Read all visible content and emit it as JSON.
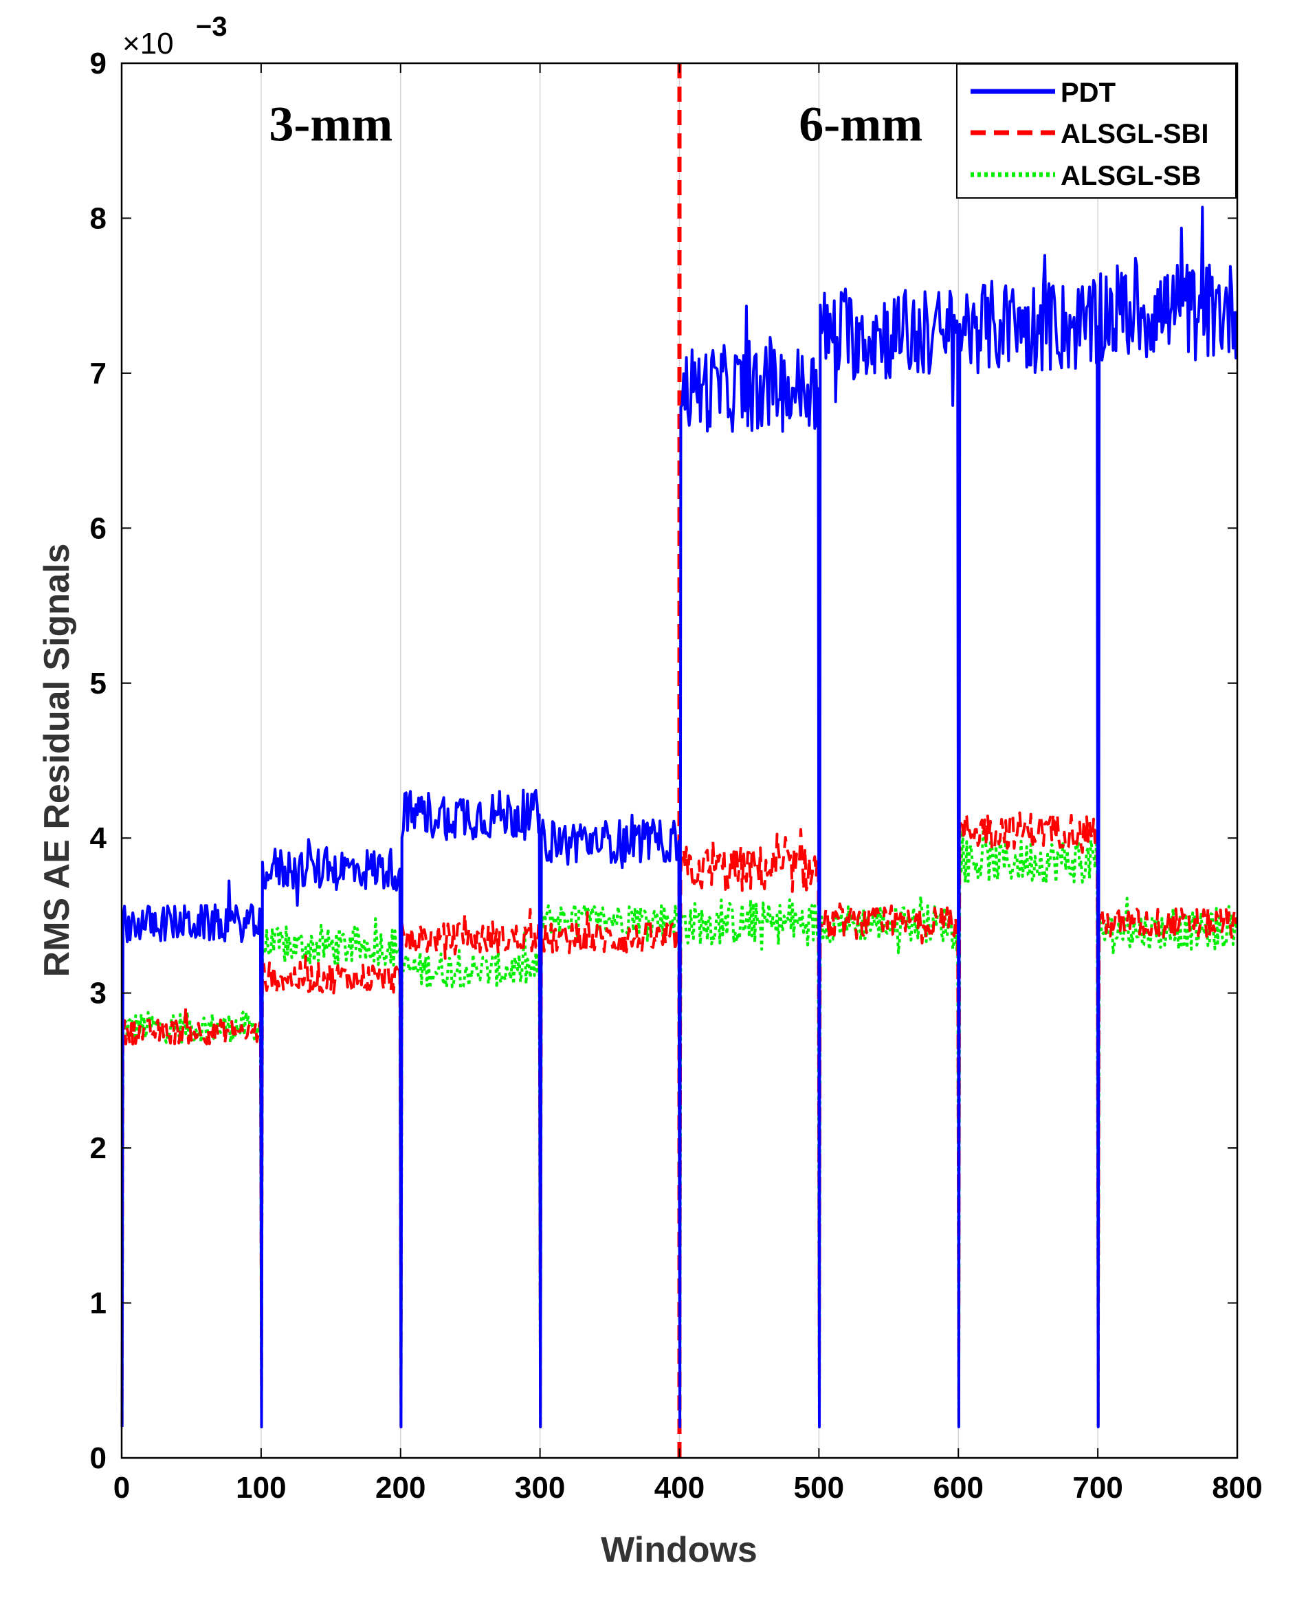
{
  "chart_data": {
    "type": "line",
    "title": "",
    "xlabel": "Windows",
    "ylabel": "RMS AE Residual Signals",
    "xlim": [
      0,
      800
    ],
    "ylim": [
      0,
      9
    ],
    "x_ticks": [
      0,
      100,
      200,
      300,
      400,
      500,
      600,
      700,
      800
    ],
    "y_ticks": [
      0,
      1,
      2,
      3,
      4,
      5,
      6,
      7,
      8,
      9
    ],
    "y_exponent_label": "×10",
    "y_exponent": "−3",
    "grid": "vertical lines at 100-window intervals",
    "legend_position": "top-right",
    "annotations": [
      {
        "text": "3-mm",
        "x": 150,
        "y": 8.5
      },
      {
        "text": "6-mm",
        "x": 530,
        "y": 8.5
      }
    ],
    "divider": {
      "x": 400,
      "label": "transition between 3-mm and 6-mm"
    },
    "segment_starts": [
      0,
      100,
      200,
      300,
      400,
      500,
      600,
      700
    ],
    "segment_length": 100,
    "drop_to_value": 0.2,
    "series": [
      {
        "name": "PDT",
        "color": "#0000ff",
        "style": "solid",
        "segment_means": [
          3.45,
          3.8,
          4.15,
          3.98,
          6.9,
          7.25,
          7.3,
          7.4
        ],
        "segment_noise": [
          0.12,
          0.14,
          0.16,
          0.14,
          0.28,
          0.3,
          0.3,
          0.32
        ]
      },
      {
        "name": "ALSGL-SBI",
        "color": "#ff0000",
        "style": "dashed",
        "segment_means": [
          2.75,
          3.1,
          3.35,
          3.35,
          3.8,
          3.45,
          4.05,
          3.45
        ],
        "segment_noise": [
          0.08,
          0.1,
          0.1,
          0.1,
          0.15,
          0.1,
          0.12,
          0.1
        ]
      },
      {
        "name": "ALSGL-SB",
        "color": "#00ee00",
        "style": "dotted",
        "segment_means": [
          2.78,
          3.3,
          3.15,
          3.48,
          3.45,
          3.45,
          3.85,
          3.4
        ],
        "segment_noise": [
          0.1,
          0.12,
          0.12,
          0.1,
          0.14,
          0.12,
          0.14,
          0.12
        ]
      }
    ]
  }
}
